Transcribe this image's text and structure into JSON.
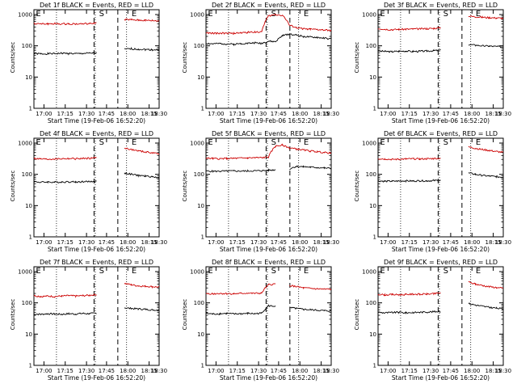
{
  "chart_data": [
    {
      "type": "line",
      "title": "Det 1f BLACK = Events, RED = LLD",
      "xlabel": "Start Time (19-Feb-06 16:52:20)",
      "ylabel": "Counts/sec",
      "yscale": "log",
      "ylim": [
        1,
        1000
      ],
      "x_tick_labels": [
        "17:00",
        "17:15",
        "17:30",
        "17:45",
        "18:00",
        "18:15",
        "18:30"
      ],
      "y_tick_labels": [
        "1",
        "10",
        "100",
        "1000"
      ],
      "markers": [
        "E",
        "S",
        "E"
      ],
      "series": [
        {
          "name": "Events",
          "color": "#000000",
          "values": [
            57,
            55,
            56,
            56,
            58,
            57,
            56,
            57,
            58,
            59,
            null,
            null,
            null,
            78,
            80,
            78,
            76,
            75,
            74
          ]
        },
        {
          "name": "LLD",
          "color": "#cc0000",
          "values": [
            520,
            500,
            505,
            510,
            500,
            505,
            500,
            505,
            510,
            540,
            null,
            null,
            null,
            700,
            680,
            660,
            650,
            640,
            620
          ]
        }
      ]
    },
    {
      "type": "line",
      "title": "Det 2f BLACK = Events, RED = LLD",
      "xlabel": "Start Time (19-Feb-06 16:52:20)",
      "ylabel": "Counts/sec",
      "yscale": "log",
      "ylim": [
        1,
        1000
      ],
      "x_tick_labels": [
        "17:00",
        "17:15",
        "17:30",
        "17:45",
        "18:00",
        "18:15",
        "18:30"
      ],
      "y_tick_labels": [
        "1",
        "10",
        "100",
        "1000"
      ],
      "markers": [
        "E",
        "S",
        "E"
      ],
      "series": [
        {
          "name": "Events",
          "color": "#000000",
          "values": [
            120,
            115,
            118,
            115,
            112,
            118,
            120,
            125,
            120,
            140,
            135,
            210,
            240,
            220,
            200,
            190,
            185,
            175,
            165
          ]
        },
        {
          "name": "LLD",
          "color": "#cc0000",
          "values": [
            260,
            250,
            255,
            250,
            250,
            260,
            270,
            280,
            275,
            900,
            1000,
            950,
            450,
            380,
            350,
            340,
            330,
            320,
            310
          ]
        }
      ]
    },
    {
      "type": "line",
      "title": "Det 3f BLACK = Events, RED = LLD",
      "xlabel": "Start Time (19-Feb-06 16:52:20)",
      "ylabel": "Counts/sec",
      "yscale": "log",
      "ylim": [
        1,
        1000
      ],
      "x_tick_labels": [
        "17:00",
        "17:15",
        "17:30",
        "17:45",
        "18:00",
        "18:15",
        "18:30"
      ],
      "y_tick_labels": [
        "1",
        "10",
        "100",
        "1000"
      ],
      "markers": [
        "E",
        "S",
        "E"
      ],
      "series": [
        {
          "name": "Events",
          "color": "#000000",
          "values": [
            68,
            66,
            65,
            67,
            68,
            66,
            67,
            68,
            70,
            72,
            null,
            null,
            null,
            110,
            105,
            100,
            98,
            95,
            92
          ]
        },
        {
          "name": "LLD",
          "color": "#cc0000",
          "values": [
            360,
            340,
            330,
            335,
            340,
            345,
            350,
            355,
            360,
            380,
            null,
            null,
            null,
            900,
            850,
            820,
            800,
            780,
            760
          ]
        }
      ]
    },
    {
      "type": "line",
      "title": "Det 4f BLACK = Events, RED = LLD",
      "xlabel": "Start Time (19-Feb-06 16:52:20)",
      "ylabel": "Counts/sec",
      "yscale": "log",
      "ylim": [
        1,
        1000
      ],
      "x_tick_labels": [
        "17:00",
        "17:15",
        "17:30",
        "17:45",
        "18:00",
        "18:15",
        "18:30"
      ],
      "y_tick_labels": [
        "1",
        "10",
        "100",
        "1000"
      ],
      "markers": [
        "E",
        "S",
        "E"
      ],
      "series": [
        {
          "name": "Events",
          "color": "#000000",
          "values": [
            58,
            56,
            57,
            56,
            57,
            58,
            57,
            58,
            59,
            60,
            null,
            null,
            null,
            110,
            100,
            92,
            88,
            84,
            78
          ]
        },
        {
          "name": "LLD",
          "color": "#cc0000",
          "values": [
            320,
            310,
            305,
            310,
            315,
            320,
            315,
            320,
            325,
            340,
            null,
            null,
            null,
            700,
            620,
            560,
            520,
            490,
            450
          ]
        }
      ]
    },
    {
      "type": "line",
      "title": "Det 5f BLACK = Events, RED = LLD",
      "xlabel": "Start Time (19-Feb-06 16:52:20)",
      "ylabel": "Counts/sec",
      "yscale": "log",
      "ylim": [
        1,
        1000
      ],
      "x_tick_labels": [
        "17:00",
        "17:15",
        "17:30",
        "17:45",
        "18:00",
        "18:15",
        "18:30"
      ],
      "y_tick_labels": [
        "1",
        "10",
        "100",
        "1000"
      ],
      "markers": [
        "E",
        "S",
        "E"
      ],
      "series": [
        {
          "name": "Events",
          "color": "#000000",
          "values": [
            128,
            125,
            126,
            127,
            128,
            127,
            128,
            130,
            130,
            135,
            140,
            null,
            150,
            180,
            175,
            170,
            165,
            160,
            155
          ]
        },
        {
          "name": "LLD",
          "color": "#cc0000",
          "values": [
            330,
            320,
            315,
            320,
            325,
            330,
            335,
            340,
            340,
            360,
            800,
            850,
            700,
            650,
            600,
            560,
            530,
            500,
            480
          ]
        }
      ]
    },
    {
      "type": "line",
      "title": "Det 6f BLACK = Events, RED = LLD",
      "xlabel": "Start Time (19-Feb-06 16:52:20)",
      "ylabel": "Counts/sec",
      "yscale": "log",
      "ylim": [
        1,
        1000
      ],
      "x_tick_labels": [
        "17:00",
        "17:15",
        "17:30",
        "17:45",
        "18:00",
        "18:15",
        "18:30"
      ],
      "y_tick_labels": [
        "1",
        "10",
        "100",
        "1000"
      ],
      "markers": [
        "E",
        "S",
        "E"
      ],
      "series": [
        {
          "name": "Events",
          "color": "#000000",
          "values": [
            62,
            60,
            60,
            61,
            62,
            61,
            62,
            62,
            63,
            65,
            null,
            null,
            null,
            110,
            100,
            92,
            88,
            84,
            80
          ]
        },
        {
          "name": "LLD",
          "color": "#cc0000",
          "values": [
            320,
            310,
            300,
            305,
            310,
            315,
            310,
            315,
            320,
            330,
            null,
            null,
            null,
            750,
            680,
            620,
            580,
            540,
            500
          ]
        }
      ]
    },
    {
      "type": "line",
      "title": "Det 7f BLACK = Events, RED = LLD",
      "xlabel": "Start Time (19-Feb-06 16:52:20)",
      "ylabel": "Counts/sec",
      "yscale": "log",
      "ylim": [
        1,
        1000
      ],
      "x_tick_labels": [
        "17:00",
        "17:15",
        "17:30",
        "17:45",
        "18:00",
        "18:15",
        "18:30"
      ],
      "y_tick_labels": [
        "1",
        "10",
        "100",
        "1000"
      ],
      "markers": [
        "E",
        "S",
        "E"
      ],
      "series": [
        {
          "name": "Events",
          "color": "#000000",
          "values": [
            44,
            43,
            45,
            44,
            43,
            45,
            44,
            46,
            45,
            47,
            null,
            null,
            null,
            70,
            66,
            64,
            62,
            60,
            58
          ]
        },
        {
          "name": "LLD",
          "color": "#cc0000",
          "values": [
            170,
            160,
            165,
            160,
            165,
            170,
            165,
            170,
            175,
            185,
            null,
            null,
            null,
            420,
            380,
            350,
            340,
            330,
            320
          ]
        }
      ]
    },
    {
      "type": "line",
      "title": "Det 8f BLACK = Events, RED = LLD",
      "xlabel": "Start Time (19-Feb-06 16:52:20)",
      "ylabel": "Counts/sec",
      "yscale": "log",
      "ylim": [
        1,
        1000
      ],
      "x_tick_labels": [
        "17:00",
        "17:15",
        "17:30",
        "17:45",
        "18:00",
        "18:15",
        "18:30"
      ],
      "y_tick_labels": [
        "1",
        "10",
        "100",
        "1000"
      ],
      "markers": [
        "E",
        "S",
        "E"
      ],
      "series": [
        {
          "name": "Events",
          "color": "#000000",
          "values": [
            46,
            44,
            45,
            46,
            44,
            45,
            46,
            45,
            47,
            80,
            78,
            null,
            70,
            66,
            62,
            60,
            58,
            56,
            55
          ]
        },
        {
          "name": "LLD",
          "color": "#cc0000",
          "values": [
            200,
            195,
            200,
            198,
            195,
            200,
            205,
            200,
            205,
            380,
            400,
            null,
            360,
            330,
            300,
            290,
            280,
            275,
            270
          ]
        }
      ]
    },
    {
      "type": "line",
      "title": "Det 9f BLACK = Events, RED = LLD",
      "xlabel": "Start Time (19-Feb-06 16:52:20)",
      "ylabel": "Counts/sec",
      "yscale": "log",
      "ylim": [
        1,
        1000
      ],
      "x_tick_labels": [
        "17:00",
        "17:15",
        "17:30",
        "17:45",
        "18:00",
        "18:15",
        "18:30"
      ],
      "y_tick_labels": [
        "1",
        "10",
        "100",
        "1000"
      ],
      "markers": [
        "E",
        "S",
        "E"
      ],
      "series": [
        {
          "name": "Events",
          "color": "#000000",
          "values": [
            50,
            48,
            49,
            50,
            48,
            49,
            50,
            51,
            52,
            54,
            null,
            null,
            null,
            95,
            85,
            78,
            72,
            68,
            64
          ]
        },
        {
          "name": "LLD",
          "color": "#cc0000",
          "values": [
            190,
            180,
            185,
            182,
            185,
            190,
            188,
            192,
            195,
            210,
            null,
            null,
            null,
            460,
            400,
            360,
            330,
            310,
            290
          ]
        }
      ]
    }
  ]
}
